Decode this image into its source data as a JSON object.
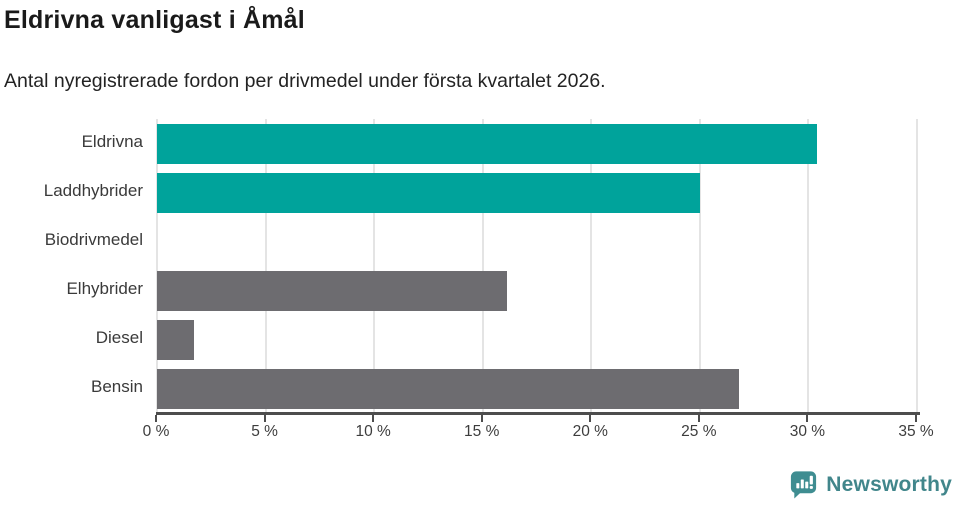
{
  "header": {
    "title": "Eldrivna vanligast i Åmål",
    "subtitle": "Antal nyregistrerade fordon per drivmedel under första kvartalet 2026."
  },
  "chart_data": {
    "type": "bar",
    "orientation": "horizontal",
    "title": "Eldrivna vanligast i Åmål",
    "subtitle": "Antal nyregistrerade fordon per drivmedel under första kvartalet 2026.",
    "categories": [
      "Eldrivna",
      "Laddhybrider",
      "Biodrivmedel",
      "Elhybrider",
      "Diesel",
      "Bensin"
    ],
    "values": [
      30.4,
      25.0,
      0,
      16.1,
      1.7,
      26.8
    ],
    "bar_colors": [
      "#00a39b",
      "#00a39b",
      "#00a39b",
      "#6d6c70",
      "#6d6c70",
      "#6d6c70"
    ],
    "unit": "%",
    "xlim": [
      0,
      35
    ],
    "x_ticks": [
      0,
      5,
      10,
      15,
      20,
      25,
      30,
      35
    ],
    "x_tick_labels": [
      "0 %",
      "5 %",
      "10 %",
      "15 %",
      "20 %",
      "25 %",
      "30 %",
      "35 %"
    ],
    "grid": "vertical",
    "legend": "none"
  },
  "colors": {
    "teal": "#00a39b",
    "gray": "#6d6c70",
    "gridline": "#e4e4e4",
    "axis": "#4d4d4d",
    "label_text": "#3a3a3a",
    "brand_teal": "#41868b",
    "brand_icon": "#3f8d91"
  },
  "footer": {
    "brand": "Newsworthy",
    "logo_icon": "newsworthy-speech-bubble-chart-icon"
  }
}
